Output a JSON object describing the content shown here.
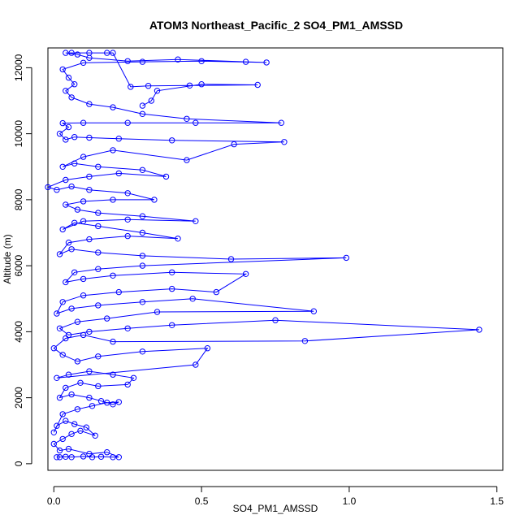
{
  "chart_data": {
    "type": "line",
    "title": "ATOM3 Northeast_Pacific_2 SO4_PM1_AMSSD",
    "xlabel": "SO4_PM1_AMSSD",
    "ylabel": "Altitude (m)",
    "xlim": [
      -0.02,
      1.52
    ],
    "ylim": [
      -200,
      12600
    ],
    "xticks": [
      0.0,
      0.5,
      1.0,
      1.5
    ],
    "xtick_labels": [
      "0.0",
      "0.5",
      "1.0",
      "1.5"
    ],
    "yticks": [
      0,
      2000,
      4000,
      6000,
      8000,
      10000,
      12000
    ],
    "ytick_labels": [
      "0",
      "2000",
      "4000",
      "6000",
      "8000",
      "10000",
      "12000"
    ],
    "grid": false,
    "legend": "none",
    "series": [
      {
        "color": "#0000ff",
        "marker": "open-circle",
        "points": [
          [
            0.01,
            200
          ],
          [
            0.02,
            200
          ],
          [
            0.04,
            210
          ],
          [
            0.06,
            200
          ],
          [
            0.1,
            220
          ],
          [
            0.13,
            200
          ],
          [
            0.16,
            210
          ],
          [
            0.2,
            200
          ],
          [
            0.22,
            200
          ],
          [
            0.18,
            350
          ],
          [
            0.12,
            300
          ],
          [
            0.05,
            450
          ],
          [
            0.02,
            400
          ],
          [
            0.0,
            600
          ],
          [
            0.03,
            750
          ],
          [
            0.06,
            900
          ],
          [
            0.09,
            1000
          ],
          [
            0.14,
            850
          ],
          [
            0.11,
            1100
          ],
          [
            0.07,
            1200
          ],
          [
            0.04,
            1300
          ],
          [
            0.01,
            1150
          ],
          [
            0.0,
            950
          ],
          [
            0.03,
            1500
          ],
          [
            0.08,
            1650
          ],
          [
            0.13,
            1750
          ],
          [
            0.18,
            1850
          ],
          [
            0.22,
            1870
          ],
          [
            0.2,
            1800
          ],
          [
            0.16,
            1900
          ],
          [
            0.12,
            2000
          ],
          [
            0.06,
            2100
          ],
          [
            0.02,
            2000
          ],
          [
            0.04,
            2300
          ],
          [
            0.09,
            2450
          ],
          [
            0.15,
            2350
          ],
          [
            0.25,
            2400
          ],
          [
            0.27,
            2600
          ],
          [
            0.2,
            2700
          ],
          [
            0.12,
            2800
          ],
          [
            0.05,
            2700
          ],
          [
            0.01,
            2600
          ],
          [
            0.48,
            3000
          ],
          [
            0.52,
            3500
          ],
          [
            0.3,
            3400
          ],
          [
            0.15,
            3250
          ],
          [
            0.08,
            3100
          ],
          [
            0.03,
            3300
          ],
          [
            0.0,
            3500
          ],
          [
            0.04,
            3800
          ],
          [
            0.1,
            3900
          ],
          [
            0.2,
            3700
          ],
          [
            0.85,
            3720
          ],
          [
            1.44,
            4060
          ],
          [
            0.75,
            4350
          ],
          [
            0.4,
            4200
          ],
          [
            0.25,
            4100
          ],
          [
            0.12,
            4000
          ],
          [
            0.05,
            3900
          ],
          [
            0.02,
            4100
          ],
          [
            0.08,
            4300
          ],
          [
            0.18,
            4400
          ],
          [
            0.35,
            4600
          ],
          [
            0.88,
            4620
          ],
          [
            0.47,
            5000
          ],
          [
            0.3,
            4900
          ],
          [
            0.15,
            4800
          ],
          [
            0.06,
            4700
          ],
          [
            0.01,
            4550
          ],
          [
            0.03,
            4900
          ],
          [
            0.1,
            5100
          ],
          [
            0.22,
            5200
          ],
          [
            0.4,
            5300
          ],
          [
            0.55,
            5200
          ],
          [
            0.65,
            5750
          ],
          [
            0.4,
            5800
          ],
          [
            0.2,
            5700
          ],
          [
            0.1,
            5600
          ],
          [
            0.04,
            5500
          ],
          [
            0.07,
            5800
          ],
          [
            0.15,
            5900
          ],
          [
            0.3,
            6000
          ],
          [
            0.99,
            6240
          ],
          [
            0.6,
            6200
          ],
          [
            0.3,
            6300
          ],
          [
            0.15,
            6400
          ],
          [
            0.06,
            6500
          ],
          [
            0.02,
            6350
          ],
          [
            0.05,
            6700
          ],
          [
            0.12,
            6800
          ],
          [
            0.25,
            6900
          ],
          [
            0.42,
            6820
          ],
          [
            0.3,
            7000
          ],
          [
            0.15,
            7200
          ],
          [
            0.07,
            7300
          ],
          [
            0.03,
            7100
          ],
          [
            0.1,
            7350
          ],
          [
            0.25,
            7400
          ],
          [
            0.48,
            7350
          ],
          [
            0.3,
            7500
          ],
          [
            0.15,
            7600
          ],
          [
            0.08,
            7700
          ],
          [
            0.04,
            7850
          ],
          [
            0.1,
            7950
          ],
          [
            0.2,
            8000
          ],
          [
            0.34,
            8000
          ],
          [
            0.25,
            8200
          ],
          [
            0.12,
            8300
          ],
          [
            0.06,
            8400
          ],
          [
            0.01,
            8300
          ],
          [
            -0.02,
            8380
          ],
          [
            0.04,
            8600
          ],
          [
            0.12,
            8700
          ],
          [
            0.22,
            8800
          ],
          [
            0.38,
            8700
          ],
          [
            0.3,
            8900
          ],
          [
            0.15,
            9000
          ],
          [
            0.07,
            9100
          ],
          [
            0.03,
            9000
          ],
          [
            0.1,
            9300
          ],
          [
            0.2,
            9500
          ],
          [
            0.45,
            9200
          ],
          [
            0.61,
            9680
          ],
          [
            0.78,
            9750
          ],
          [
            0.4,
            9800
          ],
          [
            0.22,
            9850
          ],
          [
            0.12,
            9880
          ],
          [
            0.07,
            9900
          ],
          [
            0.04,
            9820
          ],
          [
            0.02,
            10000
          ],
          [
            0.05,
            10200
          ],
          [
            0.03,
            10320
          ],
          [
            0.1,
            10330
          ],
          [
            0.25,
            10330
          ],
          [
            0.48,
            10330
          ],
          [
            0.77,
            10330
          ],
          [
            0.45,
            10450
          ],
          [
            0.3,
            10600
          ],
          [
            0.2,
            10800
          ],
          [
            0.12,
            10900
          ],
          [
            0.06,
            11100
          ],
          [
            0.04,
            11300
          ],
          [
            0.07,
            11500
          ],
          [
            0.05,
            11700
          ],
          [
            0.03,
            11950
          ],
          [
            0.1,
            12150
          ],
          [
            0.3,
            12180
          ],
          [
            0.5,
            12200
          ],
          [
            0.72,
            12160
          ],
          [
            0.65,
            12180
          ],
          [
            0.42,
            12250
          ],
          [
            0.25,
            12200
          ],
          [
            0.12,
            12300
          ],
          [
            0.08,
            12400
          ],
          [
            0.04,
            12450
          ],
          [
            0.06,
            12450
          ],
          [
            0.12,
            12450
          ],
          [
            0.18,
            12450
          ],
          [
            0.2,
            12450
          ],
          [
            0.26,
            11420
          ],
          [
            0.32,
            11450
          ],
          [
            0.46,
            11460
          ],
          [
            0.69,
            11480
          ],
          [
            0.5,
            11500
          ],
          [
            0.35,
            11300
          ],
          [
            0.33,
            11000
          ],
          [
            0.3,
            10850
          ]
        ]
      }
    ]
  }
}
